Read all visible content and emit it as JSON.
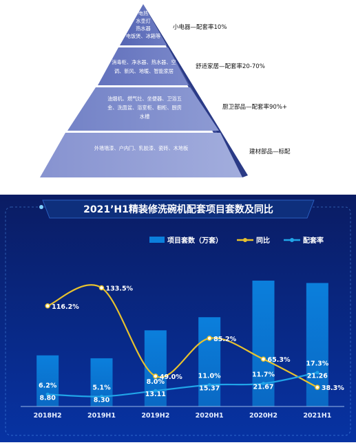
{
  "pyramid": {
    "tiers": [
      {
        "text": [
          "电热",
          "水壶灯",
          "热水器",
          "电饭煲、冰箱等"
        ],
        "label": "小电器—配套率10%"
      },
      {
        "text": [
          "消毒柜、净水器、热水器、空",
          "调、新风、地暖、智能家居"
        ],
        "label": "舒适家居—配套率20-70%"
      },
      {
        "text": [
          "油烟机、燃气灶、坐便器、卫浴五",
          "金、洗面盆、浴室柜、橱柜、厨房",
          "水槽"
        ],
        "label": "厨卫部品—配套率90%+"
      },
      {
        "text": [
          "外墙墙漆、户内门、乳胶漆、瓷砖、木地板"
        ],
        "label": "建材部品—标配"
      }
    ]
  },
  "chart_data": {
    "type": "bar",
    "title": "2021’H1精装修洗碗机配套项目套数及同比",
    "categories": [
      "2018H2",
      "2019H1",
      "2019H2",
      "2020H1",
      "2020H2",
      "2021H1"
    ],
    "series": [
      {
        "name": "项目套数（万套）",
        "type": "bar",
        "values": [
          8.8,
          8.3,
          13.11,
          15.37,
          21.67,
          21.26
        ],
        "labels": [
          "8.80",
          "8.30",
          "13.11",
          "15.37",
          "21.67",
          "21.26"
        ]
      },
      {
        "name": "同比",
        "type": "line",
        "values": [
          116.2,
          133.5,
          49.0,
          85.2,
          65.3,
          38.3
        ],
        "labels": [
          "116.2%",
          "133.5%",
          "49.0%",
          "85.2%",
          "65.3%",
          "38.3%"
        ]
      },
      {
        "name": "配套率",
        "type": "line",
        "values": [
          6.2,
          5.1,
          8.0,
          11.0,
          11.7,
          17.3
        ],
        "labels": [
          "6.2%",
          "5.1%",
          "8.0%",
          "11.0%",
          "11.7%",
          "17.3%"
        ]
      }
    ],
    "bar_ylim": [
      0,
      27
    ],
    "yoy_ylim": [
      20,
      170
    ],
    "rate_ylim": [
      0,
      80
    ],
    "legend_position": "top-right",
    "grid": false
  },
  "colors": {
    "bar": "#0b78d4",
    "yoy_line": "#e8c22e",
    "rate_line": "#21a5e8",
    "background_top": "#0a1f6b",
    "background_bottom": "#062a8a",
    "title_band": "#0d2f7a"
  }
}
